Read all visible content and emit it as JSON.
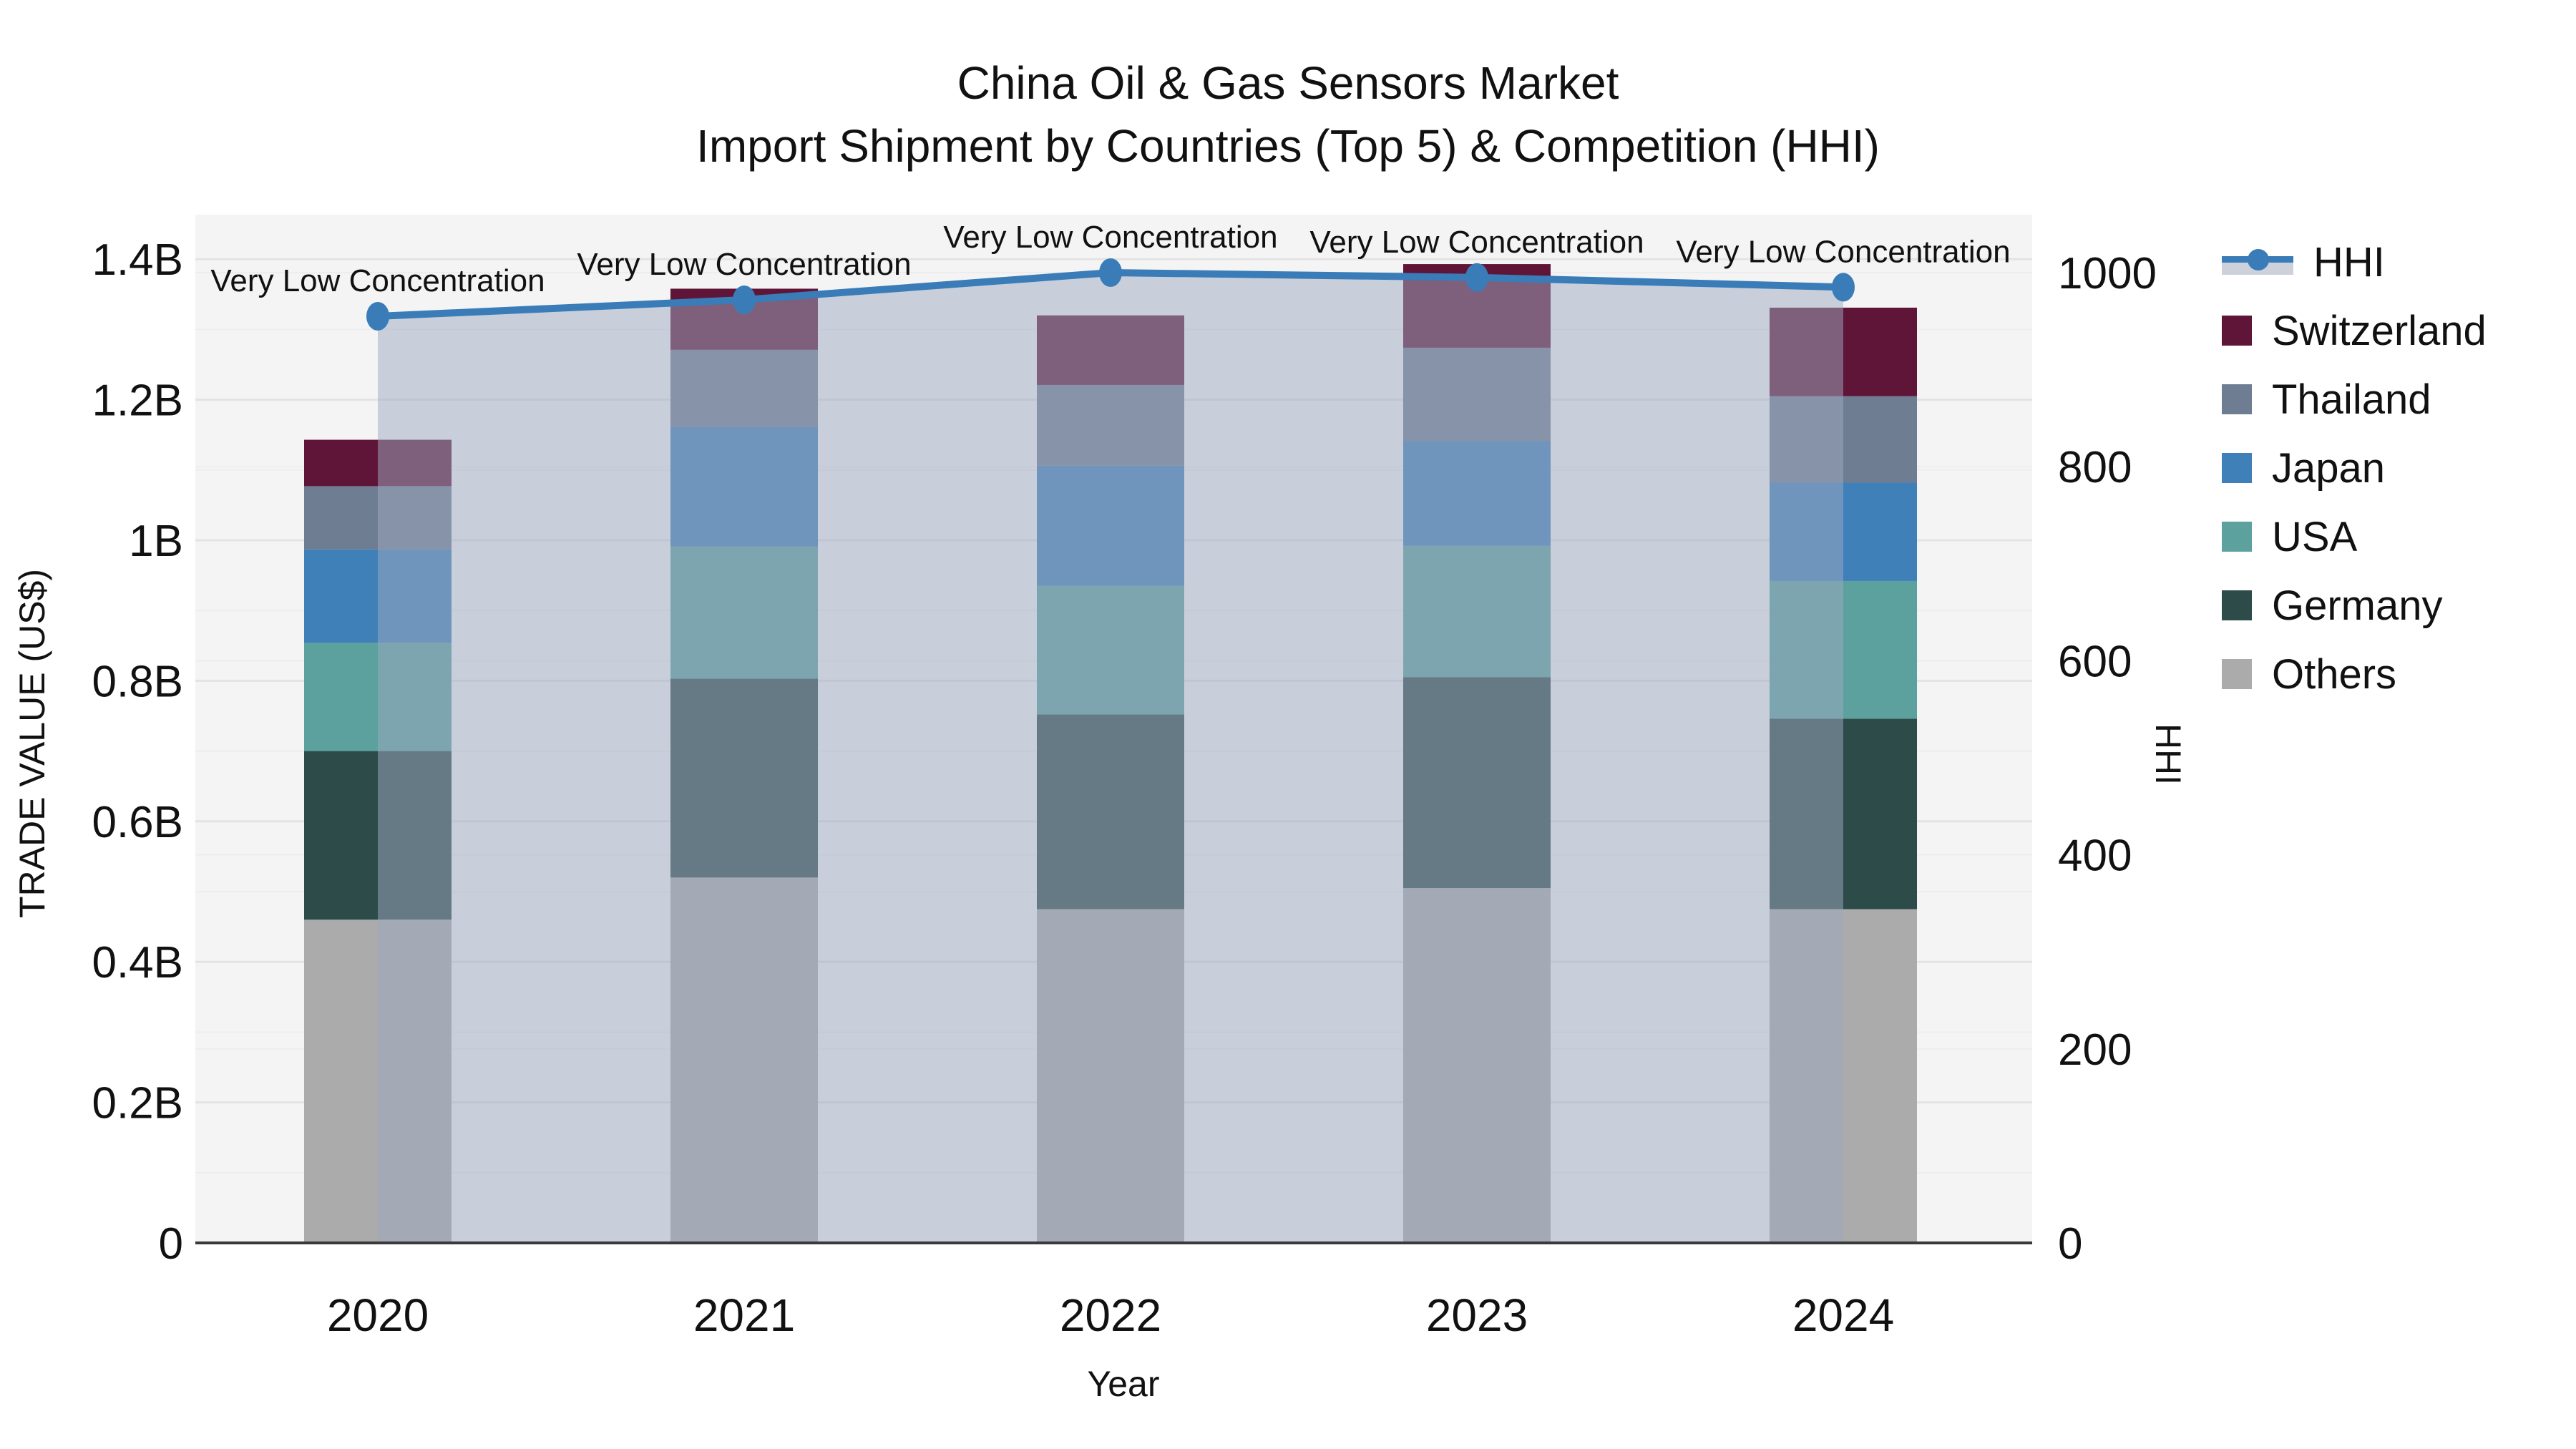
{
  "title": {
    "line1": "China Oil & Gas Sensors Market",
    "line2": "Import Shipment by Countries (Top 5) & Competition (HHI)"
  },
  "axes": {
    "y_left_label": "TRADE VALUE (US$)",
    "y_right_label": "HHI",
    "x_label": "Year"
  },
  "colors": {
    "hhi_line": "#3a7cb8",
    "hhi_area_fill": "rgba(158,170,192,0.5)",
    "switzerland": "#5f1538",
    "thailand": "#6e7d91",
    "japan": "#4080b8",
    "usa": "#5da19e",
    "germany": "#2d4b48",
    "others": "#ababab",
    "plot_bg": "#f4f4f4",
    "grid_major": "#e3e3e3",
    "grid_minor": "#ededed",
    "axis_line": "#3a3a3a",
    "text": "#111111"
  },
  "legend": {
    "items": [
      {
        "label": "HHI",
        "type": "line",
        "color": "#3a7cb8"
      },
      {
        "label": "Switzerland",
        "type": "swatch",
        "color": "#5f1538"
      },
      {
        "label": "Thailand",
        "type": "swatch",
        "color": "#6e7d91"
      },
      {
        "label": "Japan",
        "type": "swatch",
        "color": "#4080b8"
      },
      {
        "label": "USA",
        "type": "swatch",
        "color": "#5da19e"
      },
      {
        "label": "Germany",
        "type": "swatch",
        "color": "#2d4b48"
      },
      {
        "label": "Others",
        "type": "swatch",
        "color": "#ababab"
      }
    ]
  },
  "chart_data": {
    "type": "combo",
    "subtypes": [
      "stacked-bar",
      "line-with-area"
    ],
    "title": "China Oil & Gas Sensors Market — Import Shipment by Countries (Top 5) & Competition (HHI)",
    "categories": [
      "2020",
      "2021",
      "2022",
      "2023",
      "2024"
    ],
    "bar_value_unit": "billion US$",
    "series": [
      {
        "name": "Others",
        "color": "#ababab",
        "values": [
          0.46,
          0.52,
          0.475,
          0.505,
          0.475
        ]
      },
      {
        "name": "Germany",
        "color": "#2d4b48",
        "values": [
          0.24,
          0.283,
          0.277,
          0.3,
          0.271
        ]
      },
      {
        "name": "USA",
        "color": "#5da19e",
        "values": [
          0.154,
          0.188,
          0.183,
          0.187,
          0.196
        ]
      },
      {
        "name": "Japan",
        "color": "#4080b8",
        "values": [
          0.133,
          0.17,
          0.171,
          0.149,
          0.14
        ]
      },
      {
        "name": "Thailand",
        "color": "#6e7d91",
        "values": [
          0.09,
          0.11,
          0.115,
          0.133,
          0.123
        ]
      },
      {
        "name": "Switzerland",
        "color": "#5f1538",
        "values": [
          0.066,
          0.087,
          0.099,
          0.119,
          0.126
        ]
      }
    ],
    "bar_totals": [
      1.143,
      1.358,
      1.32,
      1.393,
      1.331
    ],
    "line_series": {
      "name": "HHI",
      "axis": "right",
      "color": "#3a7cb8",
      "area_fill": "rgba(158,170,192,0.5)",
      "values": [
        955,
        972,
        1000,
        995,
        985
      ]
    },
    "annotations": [
      "Very Low Concentration",
      "Very Low Concentration",
      "Very Low Concentration",
      "Very Low Concentration",
      "Very Low Concentration"
    ],
    "y_left": {
      "label": "TRADE VALUE (US$)",
      "tick_values": [
        0,
        0.2,
        0.4,
        0.6,
        0.8,
        1.0,
        1.2,
        1.4
      ],
      "tick_labels": [
        "0",
        "0.2B",
        "0.4B",
        "0.6B",
        "0.8B",
        "1B",
        "1.2B",
        "1.4B"
      ],
      "range": [
        0,
        1.463
      ],
      "grid": true
    },
    "y_right": {
      "label": "HHI",
      "tick_values": [
        0,
        200,
        400,
        600,
        800,
        1000
      ],
      "tick_labels": [
        "0",
        "200",
        "400",
        "600",
        "800",
        "1000"
      ],
      "range": [
        0,
        1060
      ],
      "grid": true
    },
    "x_label": "Year",
    "legend_position": "right"
  }
}
